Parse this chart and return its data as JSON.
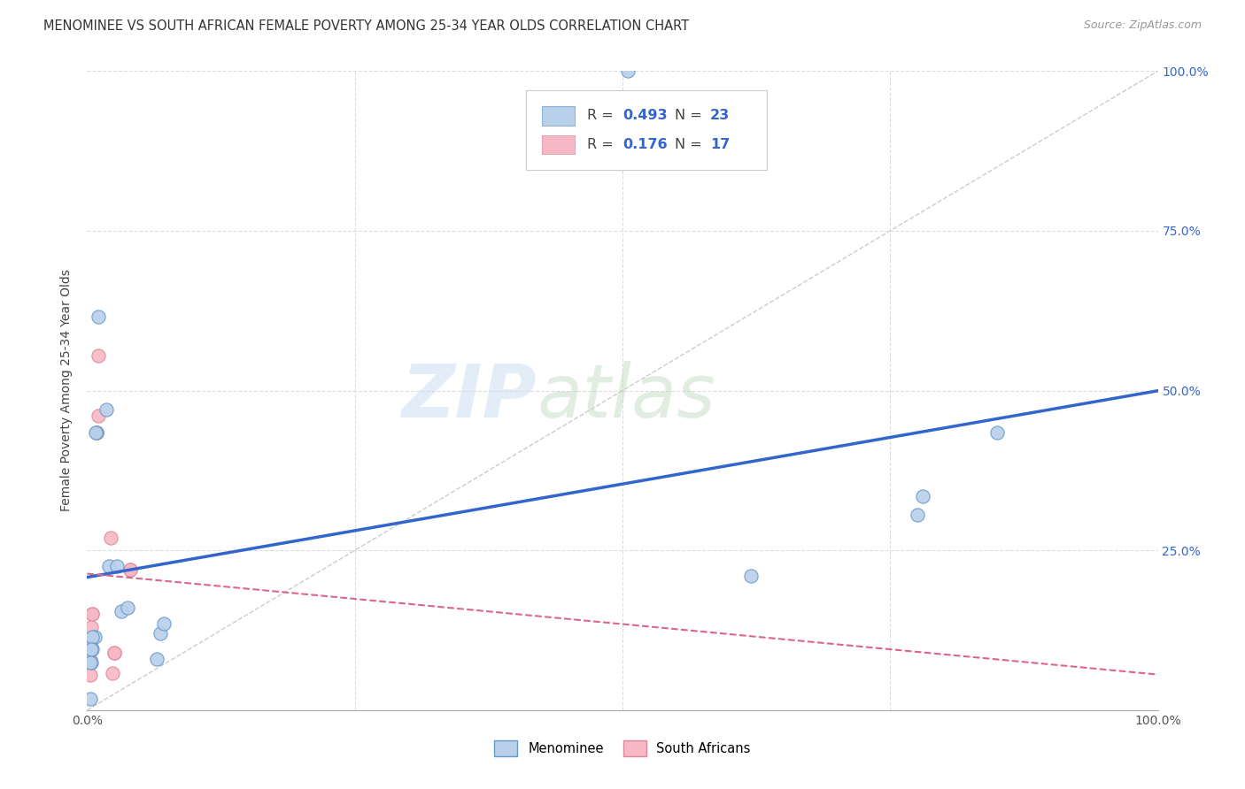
{
  "title": "MENOMINEE VS SOUTH AFRICAN FEMALE POVERTY AMONG 25-34 YEAR OLDS CORRELATION CHART",
  "source": "Source: ZipAtlas.com",
  "ylabel": "Female Poverty Among 25-34 Year Olds",
  "xlim": [
    0,
    1.0
  ],
  "ylim": [
    0,
    1.0
  ],
  "menominee_x": [
    0.02,
    0.028,
    0.018,
    0.01,
    0.009,
    0.008,
    0.007,
    0.005,
    0.005,
    0.004,
    0.004,
    0.003,
    0.003,
    0.068,
    0.072,
    0.065,
    0.032,
    0.038,
    0.62,
    0.78,
    0.775,
    0.85,
    0.505
  ],
  "menominee_y": [
    0.225,
    0.225,
    0.47,
    0.615,
    0.435,
    0.435,
    0.115,
    0.115,
    0.095,
    0.095,
    0.075,
    0.075,
    0.018,
    0.12,
    0.135,
    0.08,
    0.155,
    0.16,
    0.21,
    0.335,
    0.305,
    0.435,
    1.0
  ],
  "sa_x": [
    0.01,
    0.01,
    0.009,
    0.009,
    0.005,
    0.005,
    0.004,
    0.004,
    0.003,
    0.003,
    0.003,
    0.022,
    0.025,
    0.025,
    0.024,
    0.04,
    0.04
  ],
  "sa_y": [
    0.555,
    0.46,
    0.435,
    0.435,
    0.15,
    0.15,
    0.13,
    0.098,
    0.098,
    0.078,
    0.055,
    0.27,
    0.09,
    0.09,
    0.058,
    0.22,
    0.22
  ],
  "menominee_color": "#b8d0ea",
  "menominee_edge_color": "#6699cc",
  "sa_color": "#f5b8c4",
  "sa_edge_color": "#dd8899",
  "trendline_men_color": "#3366cc",
  "trendline_sa_color": "#dd6688",
  "R_men": "0.493",
  "N_men": "23",
  "R_sa": "0.176",
  "N_sa": "17",
  "diagonal_color": "#cccccc",
  "grid_color": "#dddddd",
  "marker_size": 120,
  "background_color": "#ffffff",
  "right_ytick_color": "#3366cc"
}
